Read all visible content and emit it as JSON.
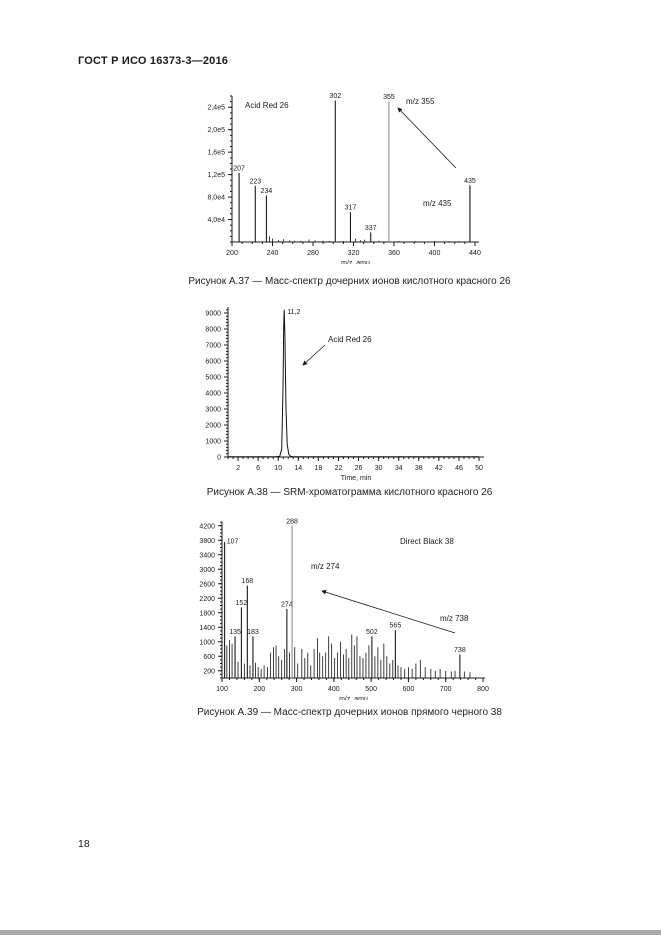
{
  "page": {
    "header": "ГОСТ Р ИСО 16373-3—2016",
    "page_number": "18"
  },
  "figures": [
    {
      "caption": "Рисунок А.37 — Масс-спектр дочерних ионов кислотного красного 26"
    },
    {
      "caption": "Рисунок А.38 — SRM-хроматограмма кислотного красного 26"
    },
    {
      "caption": "Рисунок А.39 — Масс-спектр дочерних ионов прямого черного 38"
    }
  ],
  "chart_data": [
    {
      "type": "bar",
      "subtype": "mass-spectrum",
      "title": "Масс-спектр дочерних ионов кислотного красного 26",
      "xlabel": "m/z, amu",
      "ylabel": "",
      "xlim": [
        200,
        442
      ],
      "ylim": [
        0,
        260000
      ],
      "x_major": [
        200,
        240,
        280,
        320,
        360,
        400,
        440
      ],
      "x_major_labels": [
        "200",
        "240",
        "280",
        "320",
        "360",
        "400",
        "440"
      ],
      "x_minor_step": 10,
      "y_major": [
        40000,
        80000,
        120000,
        160000,
        200000,
        240000
      ],
      "y_major_labels": [
        "4,0e4",
        "8,0e4",
        "1,2e5",
        "1,6e5",
        "2,0e5",
        "2,4e5"
      ],
      "y_minor_step": 10000,
      "peaks": [
        {
          "mz": 207,
          "intensity": 123000,
          "label": "207"
        },
        {
          "mz": 223,
          "intensity": 100000,
          "label": "223"
        },
        {
          "mz": 234,
          "intensity": 83000,
          "label": "234"
        },
        {
          "mz": 302,
          "intensity": 252000,
          "label": "302"
        },
        {
          "mz": 317,
          "intensity": 53000,
          "label": "317"
        },
        {
          "mz": 337,
          "intensity": 17000,
          "label": "337"
        },
        {
          "mz": 355,
          "intensity": 250000,
          "label": "355",
          "color": "#8f8f8f"
        },
        {
          "mz": 435,
          "intensity": 101000,
          "label": "435"
        }
      ],
      "minor_peaks": [
        [
          237,
          10000
        ],
        [
          240,
          6000
        ],
        [
          246,
          3500
        ],
        [
          251,
          5000
        ],
        [
          257,
          3000
        ],
        [
          262,
          2500
        ],
        [
          268,
          2200
        ],
        [
          276,
          4500
        ],
        [
          282,
          2800
        ],
        [
          290,
          2200
        ],
        [
          296,
          1800
        ],
        [
          310,
          2000
        ],
        [
          322,
          6000
        ],
        [
          327,
          3200
        ],
        [
          331,
          4200
        ],
        [
          345,
          2300
        ],
        [
          365,
          1800
        ],
        [
          381,
          1700
        ],
        [
          400,
          1800
        ],
        [
          414,
          1500
        ],
        [
          424,
          1600
        ]
      ],
      "annotations": [
        {
          "text": "Acid Red 26"
        },
        {
          "text": "m/z 355",
          "arrow_to": "peak 355"
        },
        {
          "text": "m/z 435"
        }
      ]
    },
    {
      "type": "line",
      "subtype": "chromatogram",
      "title": "SRM-хроматограмма кислотного красного 26",
      "xlabel": "Time, min",
      "ylabel": "",
      "xlim": [
        0,
        50
      ],
      "ylim": [
        0,
        9400
      ],
      "x_major": [
        2,
        6,
        10,
        14,
        18,
        22,
        26,
        30,
        34,
        38,
        42,
        46,
        50
      ],
      "x_major_labels": [
        "2",
        "6",
        "10",
        "14",
        "18",
        "22",
        "26",
        "30",
        "34",
        "38",
        "42",
        "46",
        "50"
      ],
      "x_minor_step": 1,
      "y_major": [
        0,
        1000,
        2000,
        3000,
        4000,
        5000,
        6000,
        7000,
        8000,
        9000
      ],
      "y_major_labels": [
        "0",
        "1000",
        "2000",
        "3000",
        "4000",
        "5000",
        "6000",
        "7000",
        "8000",
        "9000"
      ],
      "y_minor_step": 200,
      "peak_label": "11,2",
      "peak": {
        "time": 11.2,
        "intensity": 9200
      },
      "trace": [
        [
          0,
          20
        ],
        [
          4,
          20
        ],
        [
          8,
          20
        ],
        [
          9.6,
          20
        ],
        [
          10.3,
          40
        ],
        [
          10.7,
          500
        ],
        [
          10.95,
          4200
        ],
        [
          11.1,
          8200
        ],
        [
          11.2,
          9200
        ],
        [
          11.33,
          7600
        ],
        [
          11.55,
          3000
        ],
        [
          11.8,
          800
        ],
        [
          12.1,
          160
        ],
        [
          12.5,
          40
        ],
        [
          13,
          20
        ],
        [
          18,
          20
        ],
        [
          24,
          20
        ],
        [
          30,
          20
        ],
        [
          36,
          20
        ],
        [
          42,
          20
        ],
        [
          50,
          20
        ]
      ],
      "annotations": [
        {
          "text": "Acid Red 26",
          "arrow_to": "peak 11,2"
        }
      ]
    },
    {
      "type": "bar",
      "subtype": "mass-spectrum",
      "title": "Масс-спектр дочерних ионов прямого черного 38",
      "xlabel": "m/z, amu",
      "ylabel": "",
      "xlim": [
        100,
        800
      ],
      "ylim": [
        0,
        4300
      ],
      "x_major": [
        100,
        200,
        300,
        400,
        500,
        600,
        700,
        800
      ],
      "x_major_labels": [
        "100",
        "200",
        "300",
        "400",
        "500",
        "600",
        "700",
        "800"
      ],
      "x_minor_step": 20,
      "y_major": [
        200,
        600,
        1000,
        1400,
        1800,
        2200,
        2600,
        3000,
        3400,
        3800,
        4200
      ],
      "y_major_labels": [
        "200",
        "600",
        "1000",
        "1400",
        "1800",
        "2200",
        "2600",
        "3000",
        "3400",
        "3800",
        "4200"
      ],
      "y_minor_step": 100,
      "peaks": [
        {
          "mz": 107,
          "intensity": 3750,
          "label": "107"
        },
        {
          "mz": 135,
          "intensity": 1150,
          "label": "135"
        },
        {
          "mz": 152,
          "intensity": 1950,
          "label": "152"
        },
        {
          "mz": 168,
          "intensity": 2550,
          "label": "168"
        },
        {
          "mz": 183,
          "intensity": 1150,
          "label": "183"
        },
        {
          "mz": 274,
          "intensity": 1900,
          "label": "274"
        },
        {
          "mz": 288,
          "intensity": 4200,
          "label": "288",
          "color": "#8f8f8f"
        },
        {
          "mz": 502,
          "intensity": 1150,
          "label": "502"
        },
        {
          "mz": 565,
          "intensity": 1320,
          "label": "565"
        },
        {
          "mz": 738,
          "intensity": 650,
          "label": "738"
        }
      ],
      "minor_peaks": [
        [
          113,
          900
        ],
        [
          120,
          1050
        ],
        [
          127,
          950
        ],
        [
          143,
          450
        ],
        [
          160,
          400
        ],
        [
          175,
          350
        ],
        [
          190,
          420
        ],
        [
          197,
          300
        ],
        [
          205,
          250
        ],
        [
          213,
          350
        ],
        [
          222,
          300
        ],
        [
          230,
          700
        ],
        [
          238,
          850
        ],
        [
          245,
          900
        ],
        [
          252,
          600
        ],
        [
          260,
          500
        ],
        [
          268,
          800
        ],
        [
          281,
          700
        ],
        [
          295,
          850
        ],
        [
          303,
          400
        ],
        [
          314,
          800
        ],
        [
          322,
          550
        ],
        [
          330,
          700
        ],
        [
          338,
          350
        ],
        [
          347,
          800
        ],
        [
          356,
          1100
        ],
        [
          362,
          700
        ],
        [
          370,
          600
        ],
        [
          378,
          700
        ],
        [
          386,
          1150
        ],
        [
          394,
          950
        ],
        [
          402,
          550
        ],
        [
          410,
          700
        ],
        [
          418,
          1000
        ],
        [
          426,
          650
        ],
        [
          433,
          800
        ],
        [
          440,
          550
        ],
        [
          448,
          1200
        ],
        [
          455,
          900
        ],
        [
          462,
          1150
        ],
        [
          470,
          600
        ],
        [
          478,
          550
        ],
        [
          486,
          700
        ],
        [
          494,
          900
        ],
        [
          510,
          600
        ],
        [
          518,
          850
        ],
        [
          526,
          500
        ],
        [
          534,
          950
        ],
        [
          542,
          600
        ],
        [
          550,
          400
        ],
        [
          558,
          500
        ],
        [
          572,
          350
        ],
        [
          580,
          300
        ],
        [
          590,
          250
        ],
        [
          600,
          300
        ],
        [
          610,
          250
        ],
        [
          620,
          400
        ],
        [
          632,
          500
        ],
        [
          645,
          300
        ],
        [
          660,
          250
        ],
        [
          672,
          200
        ],
        [
          685,
          250
        ],
        [
          700,
          200
        ],
        [
          715,
          180
        ],
        [
          725,
          200
        ],
        [
          750,
          180
        ],
        [
          765,
          160
        ]
      ],
      "annotations": [
        {
          "text": "Direct Black 38"
        },
        {
          "text": "m/z 274",
          "arrow_to": "peak 274"
        },
        {
          "text": "m/z 738"
        }
      ]
    }
  ]
}
